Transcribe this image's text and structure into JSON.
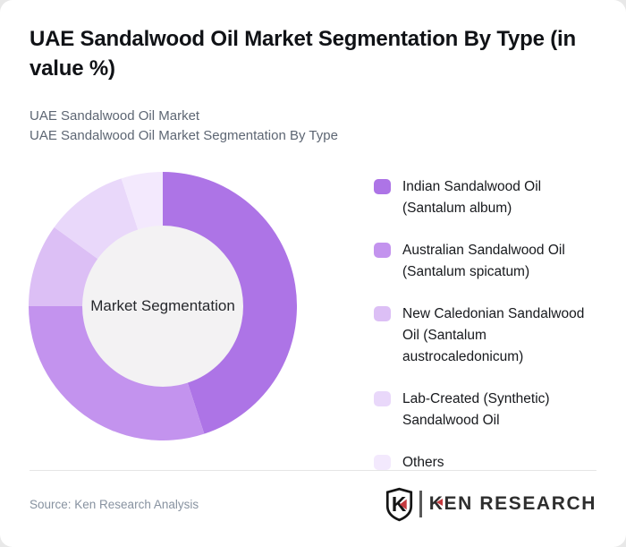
{
  "page": {
    "background": "#e8e8e8",
    "card_background": "#ffffff"
  },
  "header": {
    "title": "UAE Sandalwood Oil Market Segmentation By Type (in value %)",
    "subtitle_line1": "UAE Sandalwood Oil Market",
    "subtitle_line2": "UAE Sandalwood Oil Market Segmentation By Type"
  },
  "chart_data": {
    "type": "pie",
    "subtype": "donut",
    "title": "UAE Sandalwood Oil Market Segmentation By Type (in value %)",
    "center_label": "Market Segmentation",
    "labels": [
      "Indian Sandalwood Oil (Santalum album)",
      "Australian Sandalwood Oil (Santalum spicatum)",
      "New Caledonian Sandalwood Oil (Santalum austrocaledonicum)",
      "Lab-Created (Synthetic) Sandalwood Oil",
      "Others"
    ],
    "values": [
      45,
      30,
      10,
      10,
      5
    ],
    "unit": "percent of value",
    "colors": [
      "#ad74e6",
      "#c393ee",
      "#dcbff5",
      "#e9d8fa",
      "#f3e9fd"
    ],
    "hole_color": "#f3f2f3",
    "start_angle_deg": 0,
    "direction": "clockwise",
    "legend_position": "right"
  },
  "footer": {
    "source": "Source: Ken Research Analysis",
    "logo": {
      "badge_letter": "K",
      "wordmark_k": "K",
      "wordmark_rest": "EN RESEARCH",
      "accent_color": "#c5393e"
    }
  }
}
